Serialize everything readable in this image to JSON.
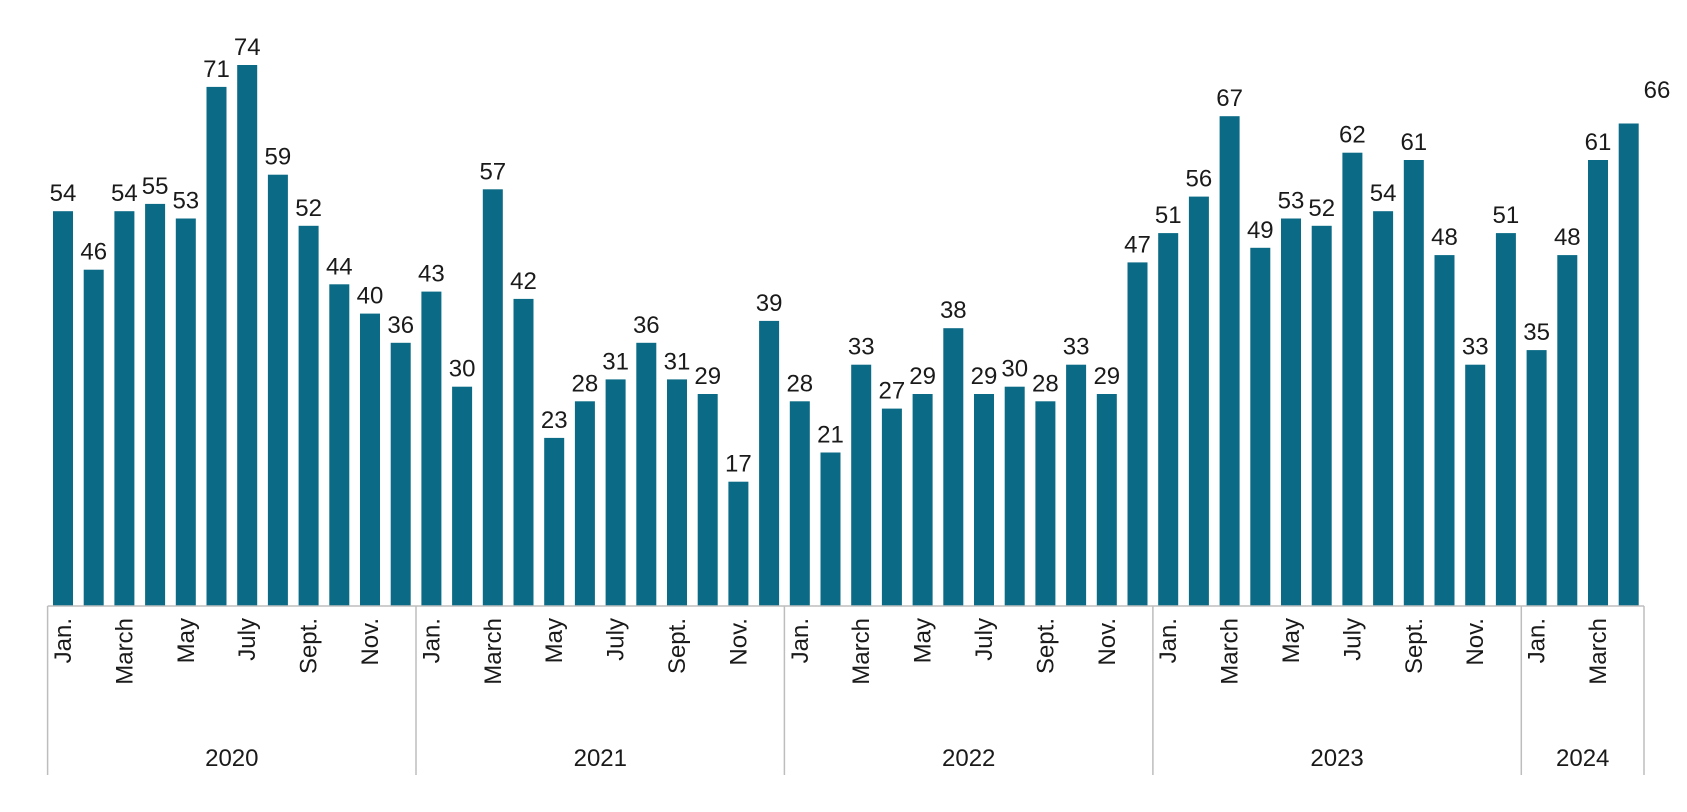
{
  "chart_data": {
    "type": "bar",
    "title": "",
    "xlabel": "",
    "ylabel": "",
    "ylim": [
      0,
      74
    ],
    "bar_color": "#0b6b86",
    "axis_color": "#bdbdbd",
    "years": [
      {
        "label": "2020",
        "count": 12
      },
      {
        "label": "2021",
        "count": 12
      },
      {
        "label": "2022",
        "count": 12
      },
      {
        "label": "2023",
        "count": 12
      },
      {
        "label": "2024",
        "count": 4
      }
    ],
    "month_labels": {
      "0": "Jan.",
      "2": "March",
      "4": "May",
      "6": "July",
      "8": "Sept.",
      "10": "Nov."
    },
    "values": [
      54,
      46,
      54,
      55,
      53,
      71,
      74,
      59,
      52,
      44,
      40,
      36,
      43,
      30,
      57,
      42,
      23,
      28,
      31,
      36,
      31,
      29,
      17,
      39,
      28,
      21,
      33,
      27,
      29,
      38,
      29,
      30,
      28,
      33,
      29,
      47,
      51,
      56,
      67,
      49,
      53,
      52,
      62,
      54,
      61,
      48,
      33,
      51,
      35,
      48,
      61,
      66
    ],
    "data_labels": [
      "54",
      "46",
      "54",
      "55",
      "53",
      "71",
      "74",
      "59",
      "52",
      "44",
      "40",
      "36",
      "43",
      "30",
      "57",
      "42",
      "23",
      "28",
      "31",
      "36",
      "31",
      "29",
      "17",
      "39",
      "28",
      "21",
      "33",
      "27",
      "29",
      "38",
      "29",
      "30",
      "28",
      "33",
      "29",
      "47",
      "51",
      "56",
      "67",
      "49",
      "53",
      "52",
      "62",
      "54",
      "61",
      "48",
      "33",
      "51",
      "35",
      "48",
      "61",
      ""
    ],
    "corner_label": "66"
  }
}
